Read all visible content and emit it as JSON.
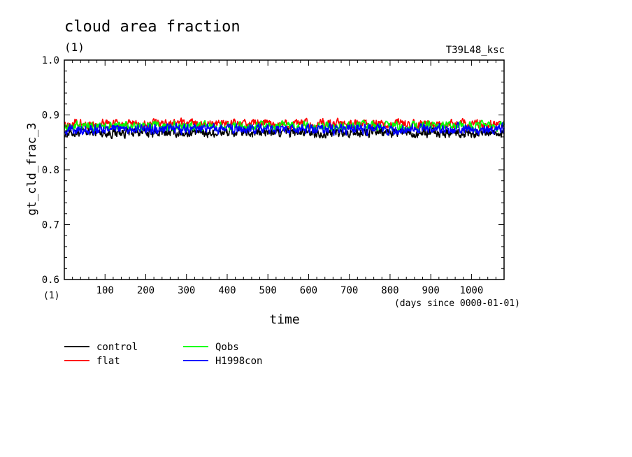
{
  "chart_data": {
    "type": "line",
    "title": "cloud area fraction",
    "title_units": "(1)",
    "corner_label": "T39L48_ksc",
    "ylabel": "gt_cld_frac_3",
    "y_units": "(1)",
    "xlabel": "time",
    "x_units_note": "(days since 0000-01-01)",
    "xlim": [
      0,
      1080
    ],
    "ylim": [
      0.6,
      1.0
    ],
    "x_ticks": [
      100,
      200,
      300,
      400,
      500,
      600,
      700,
      800,
      900,
      1000
    ],
    "x_tick_labels": [
      "100",
      "200",
      "300",
      "400",
      "500",
      "600",
      "700",
      "800",
      "900",
      "1000"
    ],
    "y_ticks": [
      0.6,
      0.7,
      0.8,
      0.9,
      1.0
    ],
    "y_tick_labels": [
      "0.6",
      "0.7",
      "0.8",
      "0.9",
      "1.0"
    ],
    "grid": false,
    "legend_position": "bottom-left",
    "series": [
      {
        "name": "control",
        "color": "#000000",
        "mean": 0.868,
        "amp": 0.007,
        "min": 0.848,
        "max": 0.885
      },
      {
        "name": "flat",
        "color": "#ff0000",
        "mean": 0.884,
        "amp": 0.006,
        "min": 0.872,
        "max": 0.905
      },
      {
        "name": "Qobs",
        "color": "#00ff00",
        "mean": 0.88,
        "amp": 0.006,
        "min": 0.858,
        "max": 0.893
      },
      {
        "name": "H1998con",
        "color": "#0000ff",
        "mean": 0.874,
        "amp": 0.007,
        "min": 0.843,
        "max": 0.892
      }
    ]
  }
}
